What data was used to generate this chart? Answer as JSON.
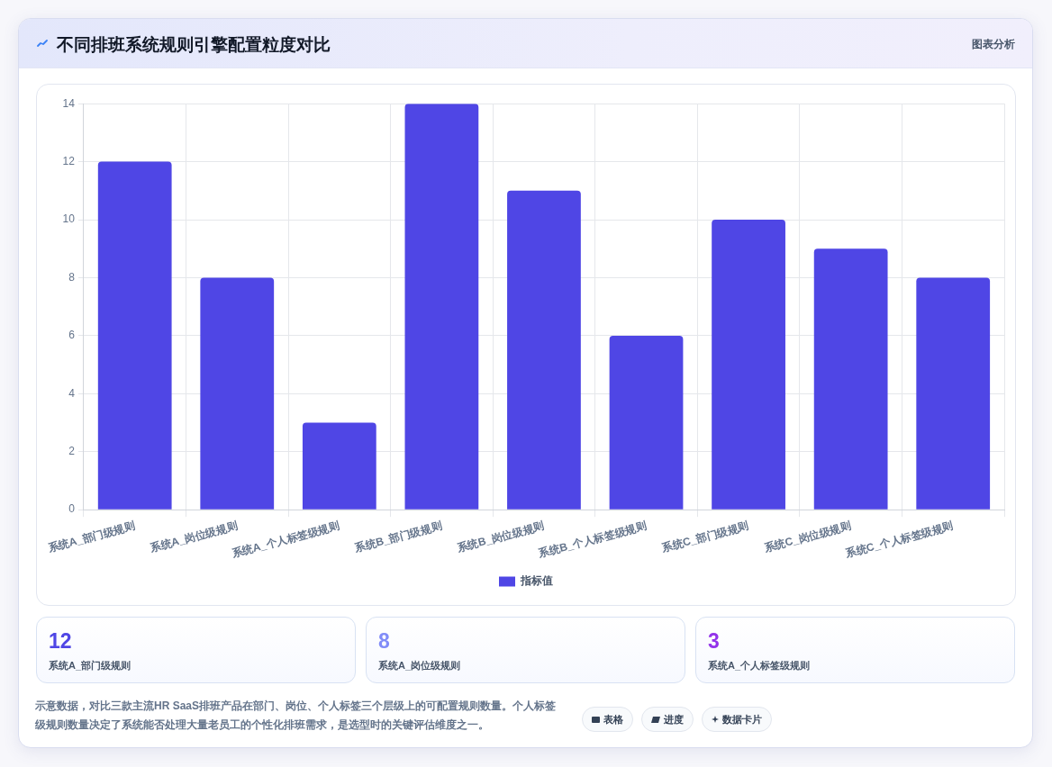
{
  "chart_data": [
    {
      "type": "bar",
      "title": "不同排班系统规则引擎配置粒度对比",
      "categories": [
        "系统A_部门级规则",
        "系统A_岗位级规则",
        "系统A_个人标签级规则",
        "系统B_部门级规则",
        "系统B_岗位级规则",
        "系统B_个人标签级规则",
        "系统C_部门级规则",
        "系统C_岗位级规则",
        "系统C_个人标签级规则"
      ],
      "series": [
        {
          "name": "指标值",
          "color": "#4f46e5",
          "values": [
            12,
            8,
            3,
            14,
            11,
            6,
            10,
            9,
            8
          ]
        }
      ],
      "ylim": [
        0,
        14
      ],
      "yticks": [
        0,
        2,
        4,
        6,
        8,
        10,
        12,
        14
      ],
      "grid": true,
      "legend": "bottom",
      "annotations": [
        "图表分析"
      ]
    },
    {
      "type": "other",
      "annotations": [
        "12",
        "系统A_部门级规则",
        "8",
        "系统A_岗位级规则",
        "3",
        "系统A_个人标签级规则",
        "示意数据，对比三款主流HR SaaS排班产品在部门、岗位、个人标签三个层级上的可配置规则数量。个人标签级规则数量决定了系统能否处理大量老员工的个性化排班需求，是选型时的关键评估维度之一。",
        "表格",
        "进度",
        "数据卡片"
      ]
    }
  ]
}
